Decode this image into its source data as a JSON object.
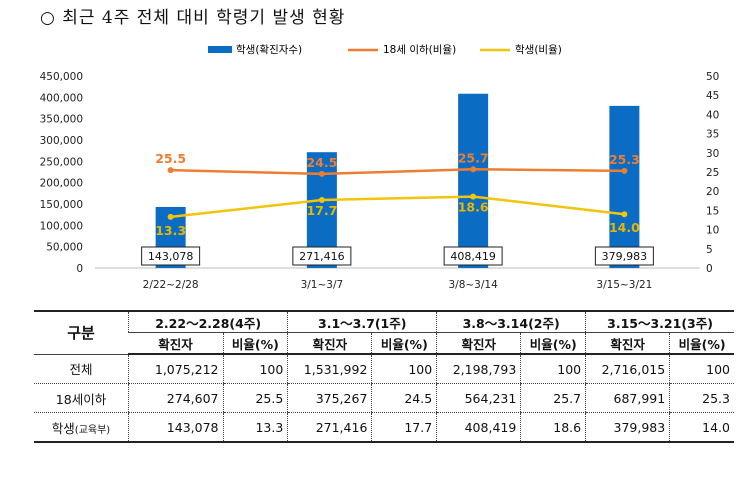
{
  "title": "○ 최근 4주 전체 대비 학령기 발생 현황",
  "legend": {
    "bar": "학생(확진자수)",
    "line1": "18세 이하(비율)",
    "line2": "학생(비율)"
  },
  "colors": {
    "bar": "#0B6CC4",
    "line1": "#ED7D31",
    "line2": "#F2C40A"
  },
  "chart_data": {
    "type": "bar",
    "categories": [
      "2/22~2/28",
      "3/1~3/7",
      "3/8~3/14",
      "3/15~3/21"
    ],
    "series": [
      {
        "name": "학생(확진자수)",
        "type": "bar",
        "axis": "left",
        "values": [
          143078,
          271416,
          408419,
          379983
        ],
        "labels": [
          "143,078",
          "271,416",
          "408,419",
          "379,983"
        ]
      },
      {
        "name": "18세 이하(비율)",
        "type": "line",
        "axis": "right",
        "values": [
          25.5,
          24.5,
          25.7,
          25.3
        ],
        "labels": [
          "25.5",
          "24.5",
          "25.7",
          "25.3"
        ]
      },
      {
        "name": "학생(비율)",
        "type": "line",
        "axis": "right",
        "values": [
          13.3,
          17.7,
          18.6,
          14.0
        ],
        "labels": [
          "13.3",
          "17.7",
          "18.6",
          "14.0"
        ]
      }
    ],
    "y_left": {
      "min": 0,
      "max": 450000,
      "ticks": [
        "0",
        "50,000",
        "100,000",
        "150,000",
        "200,000",
        "250,000",
        "300,000",
        "350,000",
        "400,000",
        "450,000"
      ]
    },
    "y_right": {
      "min": 0,
      "max": 50,
      "ticks": [
        "0",
        "5",
        "10",
        "15",
        "20",
        "25",
        "30",
        "35",
        "40",
        "45",
        "50"
      ]
    },
    "legend_position": "top"
  },
  "table": {
    "header_group": "구분",
    "periods": [
      "2.22～2.28(4주)",
      "3.1～3.7(1주)",
      "3.8～3.14(2주)",
      "3.15～3.21(3주)"
    ],
    "subheaders": [
      "확진자",
      "비율(%)"
    ],
    "rows": [
      {
        "label": "전체",
        "label_small": "",
        "cells": [
          "1,075,212",
          "100",
          "1,531,992",
          "100",
          "2,198,793",
          "100",
          "2,716,015",
          "100"
        ]
      },
      {
        "label": "18세이하",
        "label_small": "",
        "cells": [
          "274,607",
          "25.5",
          "375,267",
          "24.5",
          "564,231",
          "25.7",
          "687,991",
          "25.3"
        ]
      },
      {
        "label": "학생",
        "label_small": "(교육부)",
        "cells": [
          "143,078",
          "13.3",
          "271,416",
          "17.7",
          "408,419",
          "18.6",
          "379,983",
          "14.0"
        ]
      }
    ]
  }
}
